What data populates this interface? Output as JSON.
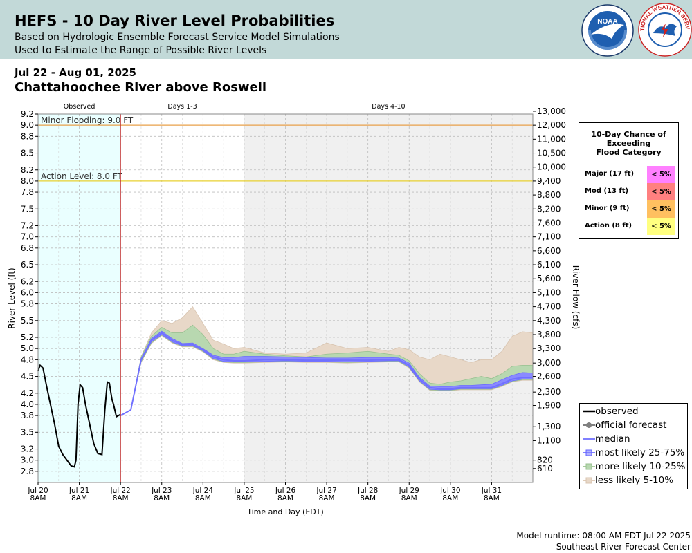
{
  "header": {
    "title": "HEFS - 10 Day River Level Probabilities",
    "subtitle1": "Based on Hydrologic Ensemble Forecast Service Model Simulations",
    "subtitle2": "Used to Estimate the Range of Possible River Levels",
    "noaa_logo_text": "NOAA",
    "nws_logo_text": "NATIONAL WEATHER SERVICE"
  },
  "date_range": "Jul 22 - Aug 01, 2025",
  "station": "Chattahoochee River above Roswell",
  "flood_table": {
    "title": [
      "10-Day Chance of",
      "Exceeding",
      "Flood Category"
    ],
    "rows": [
      {
        "label": "Major (17 ft)",
        "value": "< 5%",
        "color": "#ff80ff"
      },
      {
        "label": "Mod (13 ft)",
        "value": "< 5%",
        "color": "#ff8080"
      },
      {
        "label": "Minor (9 ft)",
        "value": "< 5%",
        "color": "#ffc060"
      },
      {
        "label": "Action (8 ft)",
        "value": "< 5%",
        "color": "#ffff80"
      }
    ]
  },
  "legend": [
    {
      "label": "observed",
      "type": "line",
      "color": "#000000"
    },
    {
      "label": "official forecast",
      "type": "point-line",
      "color": "#808080"
    },
    {
      "label": "median",
      "type": "line",
      "color": "#8080ff"
    },
    {
      "label": "most likely 25-75%",
      "type": "band",
      "color": "#8080ff"
    },
    {
      "label": "more likely 10-25%",
      "type": "band",
      "color": "#b8d8b0"
    },
    {
      "label": "less likely 5-10%",
      "type": "band",
      "color": "#e8d8c8"
    }
  ],
  "footer": {
    "model_runtime": "Model runtime: 08:00 AM EDT Jul 22 2025",
    "center": "Southeast River Forecast Center"
  },
  "chart_data": {
    "type": "area",
    "x_unit": "days since Jul 20 8AM",
    "xlabel": "Time and Day (EDT)",
    "ylabel": "River Level (ft)",
    "y2label": "River Flow (cfs)",
    "ylim": [
      2.6,
      9.2
    ],
    "xlim": [
      0,
      12
    ],
    "grid": true,
    "periods": [
      {
        "label": "Observed",
        "start": 0,
        "end": 2,
        "color": "#eaffff"
      },
      {
        "label": "Days 1-3",
        "start": 2,
        "end": 5,
        "color": "#ffffff"
      },
      {
        "label": "Days 4-10",
        "start": 5,
        "end": 12,
        "color": "#f0f0f0"
      }
    ],
    "y_ticks": [
      "2.8",
      "3.0",
      "3.2",
      "3.5",
      "3.8",
      "4.0",
      "4.2",
      "4.5",
      "4.8",
      "5.0",
      "5.2",
      "5.5",
      "5.8",
      "6.0",
      "6.2",
      "6.5",
      "6.8",
      "7.0",
      "7.2",
      "7.5",
      "7.8",
      "8.0",
      "8.2",
      "8.5",
      "8.8",
      "9.0",
      "9.2"
    ],
    "y2_ticks": [
      {
        "level": 2.85,
        "label": "610"
      },
      {
        "level": 3.0,
        "label": "820"
      },
      {
        "level": 3.35,
        "label": "1,100"
      },
      {
        "level": 3.6,
        "label": "1,300"
      },
      {
        "level": 3.98,
        "label": "1,900"
      },
      {
        "level": 4.22,
        "label": "2,300"
      },
      {
        "level": 4.5,
        "label": "2,600"
      },
      {
        "level": 4.74,
        "label": "3,000"
      },
      {
        "level": 5.0,
        "label": "3,300"
      },
      {
        "level": 5.25,
        "label": "3,800"
      },
      {
        "level": 5.5,
        "label": "4,300"
      },
      {
        "level": 5.75,
        "label": "4,700"
      },
      {
        "level": 6.0,
        "label": "5,100"
      },
      {
        "level": 6.25,
        "label": "5,600"
      },
      {
        "level": 6.5,
        "label": "6,100"
      },
      {
        "level": 6.75,
        "label": "6,600"
      },
      {
        "level": 7.0,
        "label": "7,100"
      },
      {
        "level": 7.25,
        "label": "7,600"
      },
      {
        "level": 7.5,
        "label": "8,200"
      },
      {
        "level": 7.75,
        "label": "8,800"
      },
      {
        "level": 8.0,
        "label": "9,400"
      },
      {
        "level": 8.25,
        "label": "10,000"
      },
      {
        "level": 8.5,
        "label": "10,500"
      },
      {
        "level": 8.75,
        "label": "11,000"
      },
      {
        "level": 9.0,
        "label": "12,000"
      },
      {
        "level": 9.25,
        "label": "13,000"
      }
    ],
    "x_ticks": [
      {
        "x": 0,
        "day": "Jul 20",
        "time": "8AM"
      },
      {
        "x": 1,
        "day": "Jul 21",
        "time": "8AM"
      },
      {
        "x": 2,
        "day": "Jul 22",
        "time": "8AM"
      },
      {
        "x": 3,
        "day": "Jul 23",
        "time": "8AM"
      },
      {
        "x": 4,
        "day": "Jul 24",
        "time": "8AM"
      },
      {
        "x": 5,
        "day": "Jul 25",
        "time": "8AM"
      },
      {
        "x": 6,
        "day": "Jul 26",
        "time": "8AM"
      },
      {
        "x": 7,
        "day": "Jul 27",
        "time": "8AM"
      },
      {
        "x": 8,
        "day": "Jul 28",
        "time": "8AM"
      },
      {
        "x": 9,
        "day": "Jul 29",
        "time": "8AM"
      },
      {
        "x": 10,
        "day": "Jul 30",
        "time": "8AM"
      },
      {
        "x": 11,
        "day": "Jul 31",
        "time": "8AM"
      }
    ],
    "thresholds": [
      {
        "label": "Minor Flooding: 9.0 FT",
        "value": 9.0,
        "color": "#e8a04a"
      },
      {
        "label": "Action Level: 8.0 FT",
        "value": 8.0,
        "color": "#e8d030"
      }
    ],
    "observed": {
      "x": [
        0,
        0.05,
        0.12,
        0.2,
        0.3,
        0.4,
        0.5,
        0.6,
        0.7,
        0.8,
        0.88,
        0.92,
        0.97,
        1.02,
        1.08,
        1.15,
        1.25,
        1.35,
        1.45,
        1.55,
        1.62,
        1.68,
        1.73,
        1.79,
        1.83,
        1.9,
        2.0
      ],
      "y": [
        4.6,
        4.7,
        4.65,
        4.35,
        4.0,
        3.65,
        3.25,
        3.1,
        3.0,
        2.9,
        2.88,
        3.0,
        4.0,
        4.35,
        4.3,
        4.0,
        3.65,
        3.3,
        3.12,
        3.1,
        3.9,
        4.4,
        4.38,
        4.1,
        4.0,
        3.78,
        3.82
      ]
    },
    "forecast_x": [
      2,
      2.25,
      2.5,
      2.75,
      3,
      3.25,
      3.5,
      3.75,
      4,
      4.25,
      4.5,
      4.75,
      5,
      5.5,
      6,
      6.5,
      7,
      7.5,
      8,
      8.5,
      8.75,
      9,
      9.25,
      9.5,
      9.75,
      10,
      10.25,
      10.5,
      10.75,
      11,
      11.25,
      11.5,
      11.75,
      12
    ],
    "median": [
      3.8,
      3.9,
      4.8,
      5.15,
      5.28,
      5.15,
      5.07,
      5.07,
      4.98,
      4.85,
      4.8,
      4.78,
      4.78,
      4.8,
      4.8,
      4.79,
      4.79,
      4.79,
      4.79,
      4.8,
      4.8,
      4.7,
      4.45,
      4.3,
      4.28,
      4.28,
      4.3,
      4.3,
      4.3,
      4.3,
      4.37,
      4.45,
      4.48,
      4.48
    ],
    "band_25_75": {
      "low": [
        3.8,
        3.9,
        4.78,
        5.12,
        5.25,
        5.12,
        5.05,
        5.05,
        4.96,
        4.82,
        4.77,
        4.76,
        4.76,
        4.77,
        4.78,
        4.77,
        4.77,
        4.76,
        4.77,
        4.78,
        4.78,
        4.67,
        4.42,
        4.27,
        4.26,
        4.26,
        4.28,
        4.28,
        4.28,
        4.28,
        4.34,
        4.42,
        4.45,
        4.45
      ],
      "high": [
        3.8,
        3.9,
        4.82,
        5.18,
        5.31,
        5.18,
        5.09,
        5.1,
        5.0,
        4.88,
        4.84,
        4.84,
        4.86,
        4.86,
        4.85,
        4.84,
        4.83,
        4.83,
        4.84,
        4.84,
        4.83,
        4.74,
        4.48,
        4.33,
        4.32,
        4.32,
        4.34,
        4.34,
        4.35,
        4.36,
        4.44,
        4.52,
        4.57,
        4.56
      ]
    },
    "band_10_25": {
      "low": [
        3.8,
        3.9,
        4.76,
        5.1,
        5.24,
        5.11,
        5.04,
        5.04,
        4.95,
        4.81,
        4.76,
        4.75,
        4.75,
        4.76,
        4.77,
        4.76,
        4.76,
        4.75,
        4.76,
        4.77,
        4.77,
        4.66,
        4.41,
        4.26,
        4.25,
        4.25,
        4.27,
        4.27,
        4.27,
        4.27,
        4.33,
        4.41,
        4.44,
        4.44
      ],
      "high": [
        3.8,
        3.9,
        4.85,
        5.22,
        5.38,
        5.28,
        5.28,
        5.42,
        5.25,
        5.0,
        4.9,
        4.9,
        4.95,
        4.9,
        4.87,
        4.85,
        4.9,
        4.92,
        4.95,
        4.9,
        4.88,
        4.78,
        4.55,
        4.38,
        4.36,
        4.4,
        4.42,
        4.46,
        4.5,
        4.46,
        4.55,
        4.68,
        4.7,
        4.7
      ]
    },
    "band_5_10": {
      "low": [
        3.8,
        3.9,
        4.75,
        5.09,
        5.23,
        5.1,
        5.03,
        5.03,
        4.94,
        4.8,
        4.75,
        4.74,
        4.74,
        4.75,
        4.76,
        4.75,
        4.75,
        4.74,
        4.75,
        4.76,
        4.76,
        4.65,
        4.4,
        4.25,
        4.24,
        4.24,
        4.26,
        4.26,
        4.26,
        4.26,
        4.32,
        4.4,
        4.43,
        4.43
      ],
      "high": [
        3.8,
        3.9,
        4.85,
        5.28,
        5.5,
        5.45,
        5.55,
        5.75,
        5.45,
        5.15,
        5.08,
        5.0,
        5.02,
        4.92,
        4.9,
        4.92,
        5.1,
        5.0,
        5.02,
        4.95,
        5.02,
        4.98,
        4.85,
        4.8,
        4.9,
        4.85,
        4.8,
        4.75,
        4.8,
        4.8,
        4.95,
        5.22,
        5.3,
        5.28
      ]
    }
  }
}
